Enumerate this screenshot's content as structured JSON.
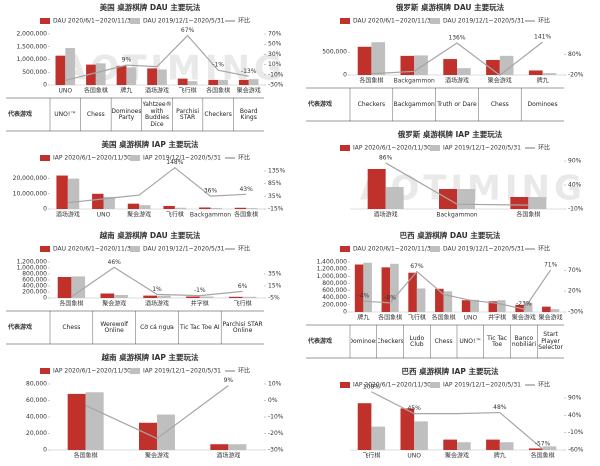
{
  "watermark": "AOTIMING",
  "chart_data": [
    {
      "type": "bar",
      "title": "美国 桌游棋牌 DAU 主要玩法",
      "categories": [
        "UNO",
        "各国象棋",
        "牌九",
        "酒场游戏",
        "飞行棋",
        "各国象棋",
        "聚会游戏"
      ],
      "series": [
        {
          "name": "DAU 2020/6/1~2020/11/30",
          "color": "#c0312b",
          "values": [
            1150000,
            800000,
            750000,
            650000,
            250000,
            200000,
            200000
          ]
        },
        {
          "name": "DAU 2019/12/1~2020/5/31",
          "color": "#bfbfbf",
          "values": [
            1450000,
            850000,
            690000,
            610000,
            150000,
            200000,
            230000
          ]
        },
        {
          "name": "环比",
          "color": "#a6a6a6",
          "axis": "y2",
          "values": [
            -21,
            -6,
            9,
            6,
            67,
            -1,
            -13
          ],
          "value_labels": [
            null,
            null,
            "9%",
            null,
            "67%",
            "-1%",
            "-13%"
          ]
        }
      ],
      "ylim": [
        0,
        2000000
      ],
      "yticks": [
        0,
        {
          "value": 500000,
          "label": "500,000"
        },
        {
          "value": 1000000,
          "label": "1,000,000"
        },
        {
          "value": 1500000,
          "label": "1,500,000"
        },
        {
          "value": 2000000,
          "label": "2,000,000"
        }
      ],
      "y2lim": [
        -30,
        70
      ],
      "y2ticks": [
        {
          "value": -30,
          "label": "-30%"
        },
        {
          "value": -10,
          "label": "-10%"
        },
        {
          "value": 10,
          "label": "10%"
        },
        {
          "value": 30,
          "label": "30%"
        },
        {
          "value": 50,
          "label": "50%"
        },
        {
          "value": 70,
          "label": "70%"
        }
      ],
      "table_label": "代表游戏",
      "representatives": [
        "UNO!™",
        "Chess",
        "Dominoes Party",
        "Yahtzee® with Buddies Dice",
        "Parchisi STAR",
        "Checkers",
        "Board Kings"
      ]
    },
    {
      "type": "bar",
      "title": "美国 桌游棋牌 IAP 主要玩法",
      "categories": [
        "酒场游戏",
        "UNO",
        "聚会游戏",
        "飞行棋",
        "Backgammon",
        "各国象棋"
      ],
      "series": [
        {
          "name": "IAP 2020/6/1~2020/11/30",
          "color": "#c0312b",
          "values": [
            22000000,
            10000000,
            3500000,
            2000000,
            1000000,
            800000
          ]
        },
        {
          "name": "IAP 2019/12/1~2020/5/31",
          "color": "#bfbfbf",
          "values": [
            20000000,
            8000000,
            2500000,
            800000,
            700000,
            600000
          ]
        },
        {
          "name": "环比",
          "color": "#a6a6a6",
          "axis": "y2",
          "values": [
            10,
            25,
            40,
            148,
            36,
            43
          ],
          "value_labels": [
            null,
            null,
            null,
            "148%",
            "36%",
            "43%"
          ]
        }
      ],
      "ylim": [
        0,
        25000000
      ],
      "yticks": [
        0,
        {
          "value": 10000000,
          "label": "10,000,000"
        },
        {
          "value": 20000000,
          "label": "20,000,000"
        }
      ],
      "y2lim": [
        -15,
        135
      ],
      "y2ticks": [
        {
          "value": -15,
          "label": "-15%"
        },
        {
          "value": 35,
          "label": "35%"
        },
        {
          "value": 85,
          "label": "85%"
        },
        {
          "value": 135,
          "label": "135%"
        }
      ]
    },
    {
      "type": "bar",
      "title": "越南 桌游棋牌 DAU 主要玩法",
      "categories": [
        "各国象棋",
        "聚会游戏",
        "酒场游戏",
        "井字棋",
        "飞行棋"
      ],
      "series": [
        {
          "name": "DAU 2020/6/1~2020/11/30",
          "color": "#c0312b",
          "values": [
            700000,
            150000,
            80000,
            50000,
            40000
          ]
        },
        {
          "name": "DAU 2019/12/1~2020/5/31",
          "color": "#bfbfbf",
          "values": [
            720000,
            100000,
            75000,
            50000,
            40000
          ]
        },
        {
          "name": "环比",
          "color": "#a6a6a6",
          "axis": "y2",
          "values": [
            -3,
            46,
            1,
            -1,
            6
          ],
          "value_labels": [
            null,
            "46%",
            "1%",
            "-1%",
            "6%"
          ]
        }
      ],
      "ylim": [
        0,
        1200000
      ],
      "yticks": [
        0,
        {
          "value": 200000,
          "label": "200,000"
        },
        {
          "value": 400000,
          "label": "400,000"
        },
        {
          "value": 600000,
          "label": "600,000"
        },
        {
          "value": 800000,
          "label": "800,000"
        },
        {
          "value": 1000000,
          "label": "1,000,000"
        },
        {
          "value": 1200000,
          "label": "1,200,000"
        }
      ],
      "y2lim": [
        -5,
        55
      ],
      "y2ticks": [
        {
          "value": -5,
          "label": "-5%"
        },
        {
          "value": 15,
          "label": "15%"
        },
        {
          "value": 35,
          "label": "35%"
        }
      ],
      "table_label": "代表游戏",
      "representatives": [
        "Chess",
        "Werewolf Online",
        "Cờ cá ngựa",
        "Tic Tac Toe AI",
        "Parchisi STAR Online"
      ]
    },
    {
      "type": "bar",
      "title": "越南 桌游棋牌 IAP 主要玩法",
      "categories": [
        "各国象棋",
        "聚会游戏",
        "酒场游戏"
      ],
      "series": [
        {
          "name": "IAP 2020/6/1~2020/11/30",
          "color": "#c0312b",
          "values": [
            68000,
            33000,
            7000
          ]
        },
        {
          "name": "IAP 2019/12/1~2020/5/31",
          "color": "#bfbfbf",
          "values": [
            70000,
            43000,
            7000
          ]
        },
        {
          "name": "环比",
          "color": "#a6a6a6",
          "axis": "y2",
          "values": [
            -3,
            -23,
            9
          ],
          "value_labels": [
            null,
            null,
            "9%"
          ]
        }
      ],
      "ylim": [
        0,
        80000
      ],
      "yticks": [
        0,
        {
          "value": 20000,
          "label": "20,000"
        },
        {
          "value": 40000,
          "label": "40,000"
        },
        {
          "value": 60000,
          "label": "60,000"
        },
        {
          "value": 80000,
          "label": "80,000"
        }
      ],
      "y2lim": [
        -30,
        10
      ],
      "y2ticks": [
        {
          "value": -30,
          "label": "-30%"
        },
        {
          "value": -20,
          "label": "-20%"
        },
        {
          "value": -10,
          "label": "-10%"
        },
        {
          "value": 0,
          "label": "0%"
        },
        {
          "value": 10,
          "label": "10%"
        }
      ]
    },
    {
      "type": "bar",
      "title": "俄罗斯 桌游棋牌 DAU 主要玩法",
      "categories": [
        "各国象棋",
        "Backgammon",
        "酒场游戏",
        "聚会游戏",
        "牌九"
      ],
      "series": [
        {
          "name": "DAU 2020/6/1~2020/11/30",
          "color": "#c0312b",
          "values": [
            620000,
            420000,
            350000,
            330000,
            100000
          ]
        },
        {
          "name": "DAU 2019/12/1~2020/5/31",
          "color": "#bfbfbf",
          "values": [
            720000,
            430000,
            150000,
            420000,
            40000
          ]
        },
        {
          "name": "环比",
          "color": "#a6a6a6",
          "axis": "y2",
          "values": [
            -14,
            -2,
            136,
            -21,
            141
          ],
          "value_labels": [
            null,
            null,
            "136%",
            null,
            "141%"
          ]
        }
      ],
      "ylim": [
        0,
        900000
      ],
      "yticks": [
        0,
        {
          "value": 500000,
          "label": "500,000"
        }
      ],
      "y2lim": [
        -20,
        180
      ],
      "y2ticks": [
        {
          "value": -20,
          "label": "-20%"
        },
        {
          "value": 80,
          "label": "80%"
        }
      ],
      "table_label": "代表游戏",
      "representatives": [
        "Checkers",
        "Backgammon",
        "Truth or Dare",
        "Chess",
        "Dominoes"
      ]
    },
    {
      "type": "bar",
      "title": "俄罗斯 桌游棋牌 IAP 主要玩法",
      "categories": [
        "酒场游戏",
        "Backgammon",
        "各国象棋"
      ],
      "series": [
        {
          "name": "IAP 2020/6/1~2020/11/30",
          "color": "#c0312b",
          "values": [
            100000,
            50000,
            30000
          ]
        },
        {
          "name": "IAP 2019/12/1~2020/5/31",
          "color": "#bfbfbf",
          "values": [
            55000,
            50000,
            30000
          ]
        },
        {
          "name": "环比",
          "color": "#a6a6a6",
          "axis": "y2",
          "values": [
            86,
            0,
            -2
          ],
          "value_labels": [
            "86%",
            null,
            null
          ]
        }
      ],
      "ylim": [
        0,
        120000
      ],
      "y2lim": [
        -10,
        90
      ],
      "y2ticks": [
        {
          "value": -10,
          "label": "-10%"
        },
        {
          "value": 40,
          "label": "40%"
        },
        {
          "value": 90,
          "label": "90%"
        }
      ]
    },
    {
      "type": "bar",
      "title": "巴西 桌游棋牌 DAU 主要玩法",
      "categories": [
        "牌九",
        "各国象棋",
        "飞行棋",
        "各国象棋",
        "UNO",
        "井字棋",
        "聚会游戏",
        "聚会游戏"
      ],
      "series": [
        {
          "name": "DAU 2020/6/1~2020/11/30",
          "color": "#c0312b",
          "values": [
            1330000,
            1250000,
            1100000,
            650000,
            330000,
            300000,
            200000,
            150000
          ]
        },
        {
          "name": "DAU 2019/12/1~2020/5/31",
          "color": "#bfbfbf",
          "values": [
            1380000,
            1350000,
            660000,
            580000,
            340000,
            330000,
            260000,
            80000
          ]
        },
        {
          "name": "环比",
          "color": "#a6a6a6",
          "axis": "y2",
          "values": [
            -4,
            -8,
            67,
            12,
            -2,
            -9,
            -23,
            71
          ],
          "value_labels": [
            "-4%",
            "-8%",
            "67%",
            null,
            null,
            null,
            "-23%",
            "71%"
          ]
        }
      ],
      "ylim": [
        0,
        1400000
      ],
      "yticks": [
        0,
        {
          "value": 200000,
          "label": "200,000"
        },
        {
          "value": 400000,
          "label": "400,000"
        },
        {
          "value": 600000,
          "label": "600,000"
        },
        {
          "value": 800000,
          "label": "800,000"
        },
        {
          "value": 1000000,
          "label": "1,000,000"
        },
        {
          "value": 1200000,
          "label": "1,200,000"
        },
        {
          "value": 1400000,
          "label": "1,400,000"
        }
      ],
      "y2lim": [
        -30,
        90
      ],
      "y2ticks": [
        {
          "value": -30,
          "label": "-30%"
        },
        {
          "value": 20,
          "label": "20%"
        },
        {
          "value": 70,
          "label": "70%"
        }
      ],
      "table_label": "代表游戏",
      "representatives": [
        "Dominoes",
        "Checkers",
        "Ludo Club",
        "Chess",
        "UNO!™",
        "Tic Tac Toe",
        "Banco Imobiliário",
        "Start Player Selector"
      ]
    },
    {
      "type": "bar",
      "title": "巴西 桌游棋牌 IAP 主要玩法",
      "categories": [
        "飞行棋",
        "UNO",
        "聚会游戏",
        "牌九",
        "各国象棋"
      ],
      "series": [
        {
          "name": "IAP 2020/6/1~2020/11/30",
          "color": "#c0312b",
          "values": [
            90000,
            80000,
            20000,
            20000,
            3000
          ]
        },
        {
          "name": "IAP 2019/12/1~2020/5/31",
          "color": "#bfbfbf",
          "values": [
            45000,
            55000,
            15000,
            15000,
            7000
          ]
        },
        {
          "name": "环比",
          "color": "#a6a6a6",
          "axis": "y2",
          "values": [
            108,
            45,
            45,
            48,
            -57
          ],
          "value_labels": [
            "108%",
            "45%",
            null,
            "48%",
            "-57%"
          ]
        }
      ],
      "ylim": [
        0,
        100000
      ],
      "y2lim": [
        -60,
        90
      ],
      "y2ticks": [
        {
          "value": -60,
          "label": "-60%"
        },
        {
          "value": -10,
          "label": "-10%"
        },
        {
          "value": 40,
          "label": "40%"
        },
        {
          "value": 90,
          "label": "90%"
        }
      ]
    }
  ]
}
